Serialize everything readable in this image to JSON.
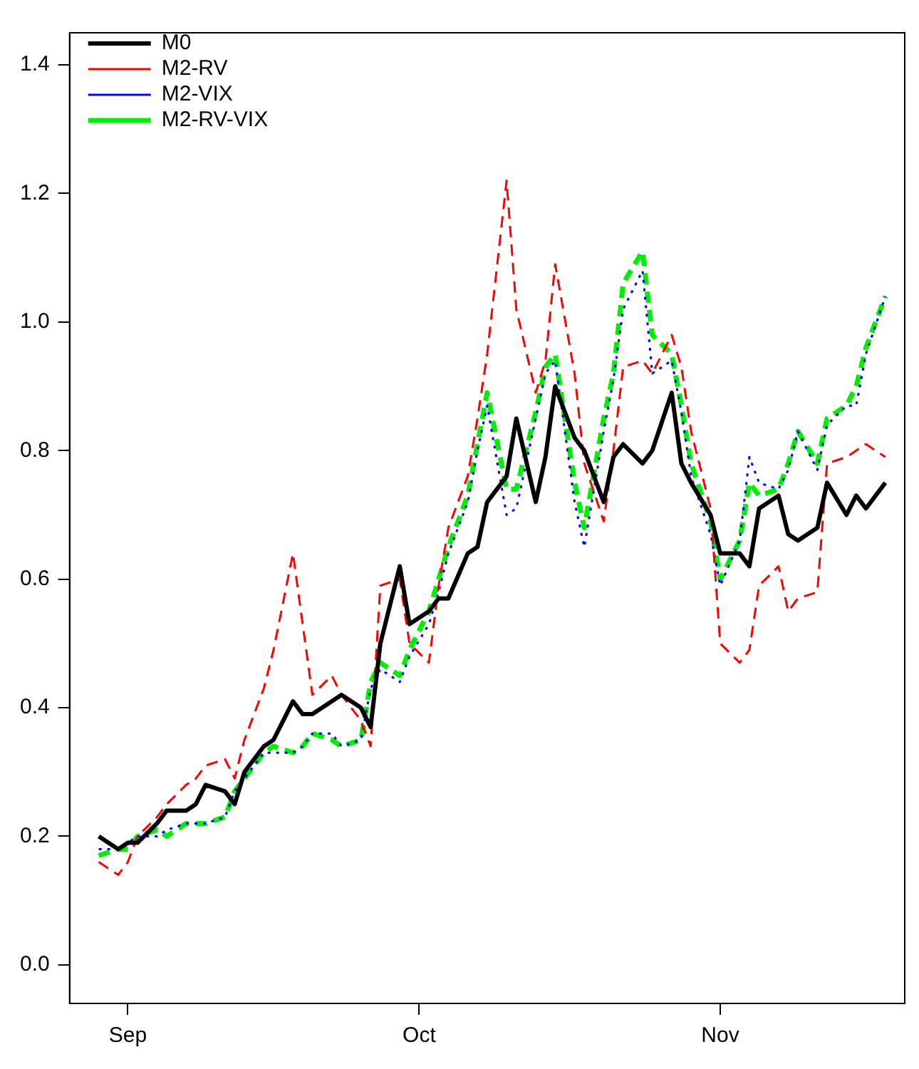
{
  "chart_data": {
    "type": "line",
    "x": [
      "--08-29",
      "--08-31",
      "--09-01",
      "--09-02",
      "--09-04",
      "--09-05",
      "--09-07",
      "--09-08",
      "--09-09",
      "--09-11",
      "--09-12",
      "--09-13",
      "--09-15",
      "--09-16",
      "--09-18",
      "--09-19",
      "--09-20",
      "--09-22",
      "--09-23",
      "--09-25",
      "--09-26",
      "--09-27",
      "--09-29",
      "--09-30",
      "--10-02",
      "--10-03",
      "--10-04",
      "--10-06",
      "--10-07",
      "--10-08",
      "--10-10",
      "--10-11",
      "--10-13",
      "--10-14",
      "--10-15",
      "--10-17",
      "--10-18",
      "--10-20",
      "--10-21",
      "--10-22",
      "--10-24",
      "--10-25",
      "--10-27",
      "--10-28",
      "--10-29",
      "--10-31",
      "--11-01",
      "--11-03",
      "--11-04",
      "--11-05",
      "--11-07",
      "--11-08",
      "--11-09",
      "--11-11",
      "--11-12",
      "--11-14",
      "--11-15",
      "--11-16",
      "--11-18"
    ],
    "series": [
      {
        "name": "M0",
        "color": "#000000",
        "line_style": "solid",
        "values": [
          0.2,
          0.18,
          0.19,
          0.19,
          0.22,
          0.24,
          0.24,
          0.25,
          0.28,
          0.27,
          0.25,
          0.3,
          0.34,
          0.35,
          0.41,
          0.39,
          0.39,
          0.41,
          0.42,
          0.4,
          0.37,
          0.5,
          0.62,
          0.53,
          0.55,
          0.57,
          0.57,
          0.64,
          0.65,
          0.72,
          0.76,
          0.85,
          0.72,
          0.79,
          0.9,
          0.82,
          0.8,
          0.72,
          0.79,
          0.81,
          0.78,
          0.8,
          0.89,
          0.78,
          0.75,
          0.7,
          0.64,
          0.64,
          0.62,
          0.71,
          0.73,
          0.67,
          0.66,
          0.68,
          0.75,
          0.7,
          0.73,
          0.71,
          0.75
        ]
      },
      {
        "name": "M2-RV",
        "color": "#ff0000",
        "line_style": "dashed",
        "values": [
          0.16,
          0.14,
          0.16,
          0.2,
          0.23,
          0.25,
          0.28,
          0.29,
          0.31,
          0.32,
          0.29,
          0.35,
          0.43,
          0.49,
          0.64,
          0.53,
          0.42,
          0.45,
          0.42,
          0.38,
          0.34,
          0.59,
          0.6,
          0.5,
          0.47,
          0.59,
          0.68,
          0.76,
          0.85,
          0.95,
          1.22,
          1.02,
          0.89,
          0.94,
          1.09,
          0.92,
          0.78,
          0.69,
          0.8,
          0.93,
          0.94,
          0.92,
          0.98,
          0.93,
          0.83,
          0.71,
          0.5,
          0.47,
          0.49,
          0.59,
          0.62,
          0.55,
          0.57,
          0.58,
          0.78,
          0.79,
          0.8,
          0.81,
          0.79
        ]
      },
      {
        "name": "M2-VIX",
        "color": "#0000ff",
        "line_style": "dotted",
        "values": [
          0.18,
          0.18,
          0.19,
          0.2,
          0.2,
          0.21,
          0.22,
          0.22,
          0.22,
          0.23,
          0.27,
          0.29,
          0.33,
          0.33,
          0.33,
          0.34,
          0.36,
          0.36,
          0.34,
          0.35,
          0.43,
          0.46,
          0.44,
          0.48,
          0.53,
          0.58,
          0.64,
          0.72,
          0.8,
          0.87,
          0.7,
          0.71,
          0.85,
          0.92,
          0.94,
          0.72,
          0.65,
          0.83,
          0.91,
          1.02,
          1.08,
          0.92,
          0.94,
          0.86,
          0.76,
          0.67,
          0.59,
          0.66,
          0.79,
          0.75,
          0.74,
          0.77,
          0.83,
          0.77,
          0.84,
          0.87,
          0.87,
          0.95,
          1.04
        ]
      },
      {
        "name": "M2-RV-VIX",
        "color": "#00ee00",
        "line_style": "dashed",
        "values": [
          0.17,
          0.18,
          0.18,
          0.2,
          0.21,
          0.2,
          0.22,
          0.22,
          0.22,
          0.23,
          0.27,
          0.29,
          0.33,
          0.34,
          0.33,
          0.34,
          0.36,
          0.35,
          0.34,
          0.35,
          0.44,
          0.47,
          0.45,
          0.49,
          0.55,
          0.6,
          0.65,
          0.73,
          0.81,
          0.89,
          0.74,
          0.74,
          0.86,
          0.93,
          0.95,
          0.75,
          0.68,
          0.85,
          0.92,
          1.06,
          1.11,
          0.98,
          0.95,
          0.87,
          0.78,
          0.69,
          0.6,
          0.66,
          0.75,
          0.73,
          0.74,
          0.78,
          0.83,
          0.78,
          0.85,
          0.87,
          0.9,
          0.96,
          1.04
        ]
      }
    ],
    "xlim": [
      "--08-26",
      "--11-20"
    ],
    "xticks": [
      {
        "value": "--09-01",
        "label": "Sep"
      },
      {
        "value": "--10-01",
        "label": "Oct"
      },
      {
        "value": "--11-01",
        "label": "Nov"
      }
    ],
    "ylim": [
      -0.06,
      1.45
    ],
    "yticks": [
      {
        "value": 0,
        "label": "0.0"
      },
      0.2,
      0.4,
      0.6,
      0.8,
      {
        "value": 1,
        "label": "1.0"
      },
      1.2,
      1.4
    ],
    "legend": "top left",
    "marker": "none"
  }
}
